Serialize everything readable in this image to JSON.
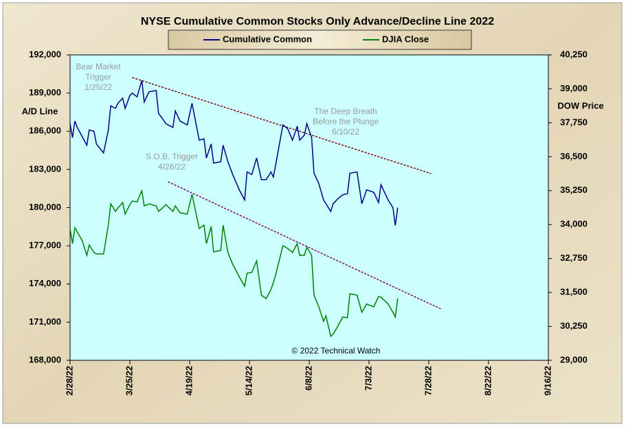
{
  "chart_data": {
    "type": "line",
    "title": "NYSE Cumulative  Common Stocks Only Advance/Decline  Line 2022",
    "ylabel": "A/D Line",
    "y2label": "DOW  Price",
    "annotations": [
      {
        "lines": [
          "Bear Market",
          "Trigger",
          "1/25/22"
        ]
      },
      {
        "lines": [
          "The  Deep Breath",
          "Before the Plunge",
          "6/10/22"
        ]
      },
      {
        "lines": [
          "S.O.B. Trigger",
          "4/26/22"
        ]
      },
      {
        "lines": [
          "© 2022 Technical Watch"
        ]
      }
    ],
    "x": [
      "2022-02-28",
      "2022-03-01",
      "2022-03-02",
      "2022-03-03",
      "2022-03-05",
      "2022-03-07",
      "2022-03-08",
      "2022-03-10",
      "2022-03-11",
      "2022-03-14",
      "2022-03-16",
      "2022-03-17",
      "2022-03-19",
      "2022-03-20",
      "2022-03-22",
      "2022-03-23",
      "2022-03-25",
      "2022-03-26",
      "2022-03-28",
      "2022-03-30",
      "2022-03-31",
      "2022-04-02",
      "2022-04-05",
      "2022-04-06",
      "2022-04-08",
      "2022-04-09",
      "2022-04-12",
      "2022-04-13",
      "2022-04-15",
      "2022-04-18",
      "2022-04-20",
      "2022-04-23",
      "2022-04-25",
      "2022-04-26",
      "2022-04-28",
      "2022-04-29",
      "2022-05-02",
      "2022-05-03",
      "2022-05-05",
      "2022-05-07",
      "2022-05-10",
      "2022-05-12",
      "2022-05-13",
      "2022-05-15",
      "2022-05-17",
      "2022-05-19",
      "2022-05-21",
      "2022-05-23",
      "2022-05-24",
      "2022-05-25",
      "2022-05-28",
      "2022-05-30",
      "2022-06-01",
      "2022-06-03",
      "2022-06-04",
      "2022-06-06",
      "2022-06-07",
      "2022-06-09",
      "2022-06-10",
      "2022-06-12",
      "2022-06-14",
      "2022-06-15",
      "2022-06-17",
      "2022-06-18",
      "2022-06-20",
      "2022-06-22",
      "2022-06-24",
      "2022-06-25",
      "2022-06-28",
      "2022-06-30",
      "2022-07-02",
      "2022-07-05",
      "2022-07-07",
      "2022-07-08",
      "2022-07-11",
      "2022-07-13",
      "2022-07-14",
      "2022-07-15"
    ],
    "series": [
      {
        "name": "Cumulative Common",
        "color": "#000080",
        "axis": "y",
        "values": [
          186600,
          185500,
          186800,
          186300,
          185600,
          184900,
          186100,
          186000,
          185000,
          184300,
          186100,
          188000,
          187800,
          188200,
          188600,
          187800,
          188800,
          189000,
          188700,
          190000,
          188300,
          189100,
          189200,
          187400,
          186900,
          186600,
          186300,
          187600,
          186800,
          186500,
          188200,
          185300,
          185400,
          183900,
          185000,
          183500,
          183600,
          184900,
          183600,
          182600,
          181300,
          180600,
          182800,
          182600,
          183900,
          182200,
          182200,
          182800,
          182400,
          183400,
          186500,
          186200,
          185300,
          186400,
          185300,
          185700,
          186600,
          185500,
          182700,
          181900,
          180600,
          180300,
          179700,
          180300,
          180700,
          181000,
          181100,
          182700,
          182800,
          180300,
          181400,
          181200,
          180400,
          181800,
          180600,
          180000,
          178600,
          180000
        ]
      },
      {
        "name": "DJIA Close",
        "color": "#008000",
        "axis": "y2",
        "values": [
          33854,
          33298,
          33880,
          33727,
          33424,
          32868,
          33247,
          32969,
          32918,
          32918,
          33980,
          34764,
          34486,
          34612,
          34814,
          34385,
          34739,
          34865,
          34840,
          35244,
          34688,
          34764,
          34688,
          34486,
          34637,
          34739,
          34486,
          34688,
          34435,
          34385,
          35118,
          33854,
          33980,
          33298,
          33930,
          32994,
          33045,
          33980,
          32969,
          32539,
          32034,
          31730,
          32210,
          32236,
          32666,
          31402,
          31275,
          31604,
          31857,
          32160,
          33222,
          33121,
          32969,
          33298,
          32868,
          32868,
          33171,
          32868,
          31402,
          30972,
          30441,
          30643,
          29885,
          29960,
          30264,
          30593,
          30567,
          31452,
          31402,
          30770,
          31073,
          30972,
          31351,
          31326,
          31073,
          30770,
          30593,
          31275
        ]
      }
    ],
    "trend_lines": [
      {
        "color": "#800000",
        "x": [
          "2022-03-26",
          "2022-07-29"
        ],
        "values": [
          190222,
          182671
        ]
      },
      {
        "color": "#800060",
        "x": [
          "2022-04-10",
          "2022-08-02"
        ],
        "values": [
          182024,
          172045
        ]
      }
    ],
    "xlim": [
      "2022-02-28",
      "2022-09-16"
    ],
    "xticks": [
      {
        "value": "2022-02-28",
        "label": "2/28/22"
      },
      {
        "value": "2022-03-25",
        "label": "3/25/22"
      },
      {
        "value": "2022-04-19",
        "label": "4/19/22"
      },
      {
        "value": "2022-05-14",
        "label": "5/14/22"
      },
      {
        "value": "2022-06-08",
        "label": "6/8/22"
      },
      {
        "value": "2022-07-03",
        "label": "7/3/22"
      },
      {
        "value": "2022-07-28",
        "label": "7/28/22"
      },
      {
        "value": "2022-08-22",
        "label": "8/22/22"
      },
      {
        "value": "2022-09-16",
        "label": "9/16/22"
      }
    ],
    "ylim": [
      168000,
      192000
    ],
    "yticks": [
      {
        "value": 168000,
        "label": "168,000"
      },
      {
        "value": 171000,
        "label": "171,000"
      },
      {
        "value": 174000,
        "label": "174,000"
      },
      {
        "value": 177000,
        "label": "177,000"
      },
      {
        "value": 180000,
        "label": "180,000"
      },
      {
        "value": 183000,
        "label": "183,000"
      },
      {
        "value": 186000,
        "label": "186,000"
      },
      {
        "value": 189000,
        "label": "189,000"
      },
      {
        "value": 192000,
        "label": "192,000"
      }
    ],
    "y2lim": [
      29000,
      40250
    ],
    "y2ticks": [
      {
        "value": 29000,
        "label": "29,000"
      },
      {
        "value": 30250,
        "label": "30,250"
      },
      {
        "value": 31500,
        "label": "31,500"
      },
      {
        "value": 32750,
        "label": "32,750"
      },
      {
        "value": 34000,
        "label": "34,000"
      },
      {
        "value": 35250,
        "label": "35,250"
      },
      {
        "value": 36500,
        "label": "36,500"
      },
      {
        "value": 37750,
        "label": "37,750"
      },
      {
        "value": 39000,
        "label": "39,000"
      },
      {
        "value": 40250,
        "label": "40,250"
      }
    ],
    "legend": "top"
  }
}
